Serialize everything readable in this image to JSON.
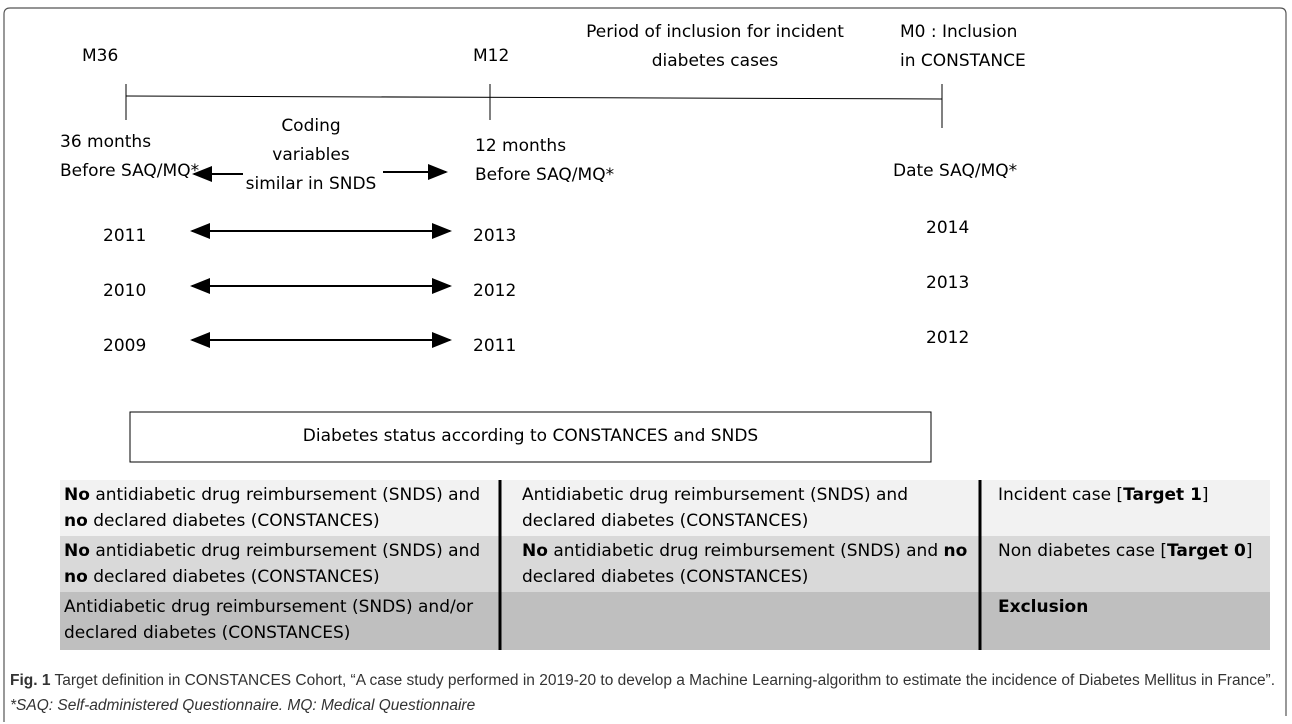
{
  "timeline": {
    "m36": "M36",
    "m12": "M12",
    "m0": [
      "M0 : Inclusion",
      "in CONSTANCE"
    ],
    "period": [
      "Period of inclusion for incident",
      "diabetes cases"
    ],
    "start": [
      "36 months",
      "Before SAQ/MQ*"
    ],
    "coding": [
      "Coding",
      "variables",
      "similar in SNDS"
    ],
    "mid": [
      "12 months",
      "Before SAQ/MQ*"
    ],
    "end": "Date SAQ/MQ*"
  },
  "years": [
    [
      "2011",
      "2013",
      "2014"
    ],
    [
      "2010",
      "2012",
      "2013"
    ],
    [
      "2009",
      "2011",
      "2012"
    ]
  ],
  "status_box": "Diabetes status according to CONSTANCES and SNDS",
  "table": {
    "rows": [
      [
        [
          {
            "text": "No",
            "bold": true
          },
          {
            "text": " antidiabetic drug reimbursement (SNDS) and ",
            "bold": false
          },
          {
            "text": "no",
            "bold": true
          },
          {
            "text": " declared diabetes (CONSTANCES)",
            "bold": false
          }
        ],
        [
          {
            "text": "Antidiabetic drug reimbursement (SNDS) and declared diabetes (CONSTANCES)",
            "bold": false
          }
        ],
        [
          {
            "text": "Incident case [",
            "bold": false
          },
          {
            "text": "Target 1",
            "bold": true
          },
          {
            "text": "]",
            "bold": false
          }
        ]
      ],
      [
        [
          {
            "text": "No",
            "bold": true
          },
          {
            "text": " antidiabetic drug reimbursement (SNDS) and ",
            "bold": false
          },
          {
            "text": "no",
            "bold": true
          },
          {
            "text": " declared diabetes (CONSTANCES)",
            "bold": false
          }
        ],
        [
          {
            "text": "No",
            "bold": true
          },
          {
            "text": " antidiabetic drug reimbursement (SNDS) and ",
            "bold": false
          },
          {
            "text": "no",
            "bold": true
          },
          {
            "text": " declared diabetes (CONSTANCES)",
            "bold": false
          }
        ],
        [
          {
            "text": "Non diabetes case [",
            "bold": false
          },
          {
            "text": "Target 0",
            "bold": true
          },
          {
            "text": "]",
            "bold": false
          }
        ]
      ],
      [
        [
          {
            "text": "Antidiabetic drug reimbursement (SNDS) and/or declared diabetes (CONSTANCES)",
            "bold": false
          }
        ],
        [],
        [
          {
            "text": "Exclusion",
            "bold": true
          }
        ]
      ]
    ]
  },
  "caption": [
    {
      "text": "Fig. 1",
      "bold": true,
      "italic": false
    },
    {
      "text": " Target definition in CONSTANCES Cohort, “A case study performed in 2019-20 to develop a Machine Learning-algorithm to estimate the incidence of Diabetes Mellitus in France”. ",
      "bold": false,
      "italic": false
    },
    {
      "text": "*SAQ: Self-administered Questionnaire. MQ: Medical Questionnaire",
      "bold": false,
      "italic": true
    }
  ]
}
